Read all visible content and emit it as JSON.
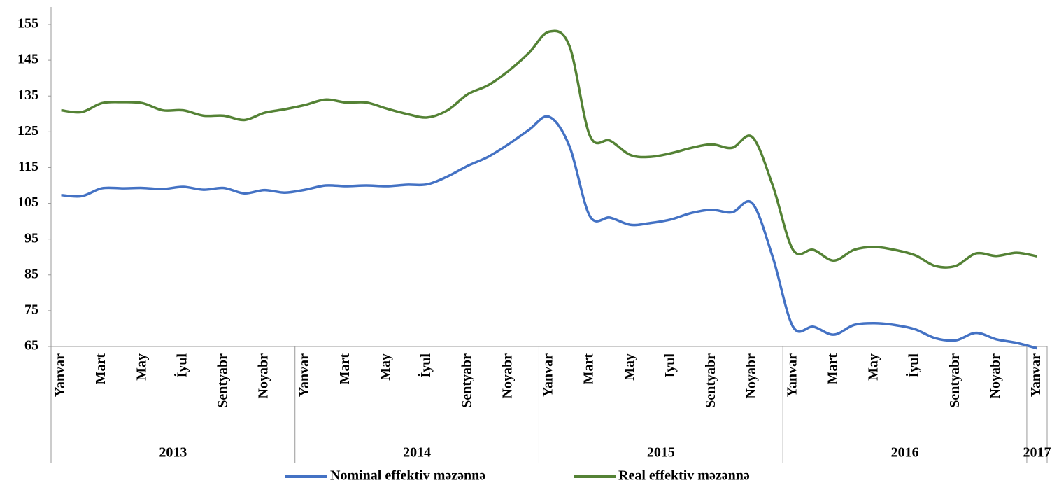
{
  "chart_data": {
    "type": "line",
    "categories": [
      "Yanvar",
      null,
      "Mart",
      null,
      "May",
      null,
      "İyul",
      null,
      "Sentyabr",
      null,
      "Noyabr",
      null,
      "Yanvar",
      null,
      "Mart",
      null,
      "May",
      null,
      "İyul",
      null,
      "Sentyabr",
      null,
      "Noyabr",
      null,
      "Yanvar",
      null,
      "Mart",
      null,
      "May",
      null,
      "Iyul",
      null,
      "Sentyabr",
      null,
      "Noyabr",
      null,
      "Yanvar",
      null,
      "Mart",
      null,
      "May",
      null,
      "İyul",
      null,
      "Sentyabr",
      null,
      "Noyabr",
      null,
      "Yanvar"
    ],
    "years": [
      "2013",
      "2014",
      "2015",
      "2016",
      "2017"
    ],
    "series": [
      {
        "name": "Nominal effektiv məzənnə",
        "color": "#4472c4",
        "values": [
          107.3,
          107,
          109.2,
          109.2,
          109.3,
          109,
          109.6,
          108.8,
          109.3,
          107.8,
          108.7,
          108,
          108.8,
          110,
          109.8,
          110,
          109.8,
          110.2,
          110.3,
          112.5,
          115.5,
          118,
          121.5,
          125.5,
          129.2,
          121,
          101.5,
          101,
          99,
          99.5,
          100.5,
          102.3,
          103.2,
          102.5,
          105,
          90,
          70.5,
          70.5,
          68.3,
          71,
          71.5,
          71,
          69.8,
          67.3,
          66.7,
          68.8,
          67,
          66,
          64.5
        ]
      },
      {
        "name": "Real effektiv məzənnə",
        "color": "#548235",
        "values": [
          131,
          130.5,
          133,
          133.3,
          133,
          131,
          131,
          129.5,
          129.5,
          128.3,
          130.3,
          131.3,
          132.5,
          134,
          133.2,
          133.2,
          131.5,
          130,
          129,
          131,
          135.5,
          138,
          142,
          147,
          153,
          149,
          124,
          122.5,
          118.5,
          118,
          119,
          120.5,
          121.5,
          120.5,
          123.5,
          110,
          92,
          92,
          89,
          92,
          92.8,
          92,
          90.5,
          87.5,
          87.5,
          91,
          90.3,
          91.2,
          90.2
        ]
      }
    ],
    "ylim": [
      65,
      155
    ],
    "yticks": [
      65,
      75,
      85,
      95,
      105,
      115,
      125,
      135,
      145,
      155
    ]
  }
}
